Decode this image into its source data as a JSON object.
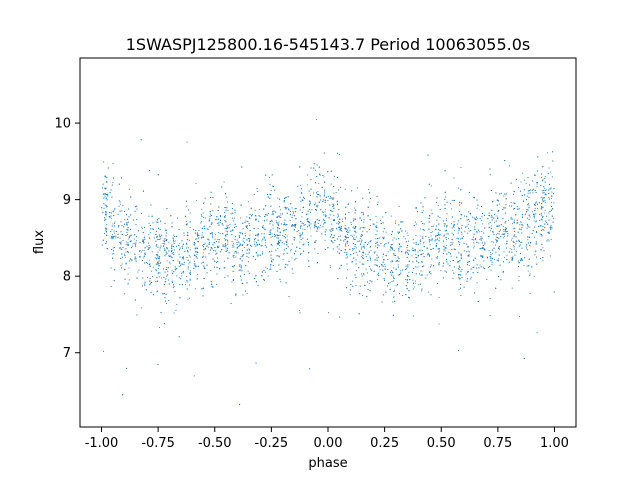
{
  "chart_data": {
    "type": "scatter",
    "title": "1SWASPJ125800.16-545143.7 Period 10063055.0s",
    "xlabel": "phase",
    "ylabel": "flux",
    "xlim": [
      -1.095,
      1.095
    ],
    "ylim": [
      6.03,
      10.85
    ],
    "x_ticks": [
      "-1.00",
      "-0.75",
      "-0.50",
      "-0.25",
      "0.00",
      "0.25",
      "0.50",
      "0.75",
      "1.00"
    ],
    "y_ticks": [
      "7",
      "8",
      "9",
      "10"
    ],
    "grid": false,
    "legend": "none",
    "marker_color": "#1f77b4",
    "series_profile": {
      "description_units": "phase vs median flux",
      "phase": [
        -1.0,
        -0.95,
        -0.9,
        -0.85,
        -0.8,
        -0.75,
        -0.7,
        -0.65,
        -0.6,
        -0.55,
        -0.5,
        -0.45,
        -0.4,
        -0.35,
        -0.3,
        -0.25,
        -0.2,
        -0.15,
        -0.1,
        -0.05,
        0.0,
        0.05,
        0.1,
        0.15,
        0.2,
        0.25,
        0.3,
        0.35,
        0.4,
        0.45,
        0.5,
        0.55,
        0.6,
        0.65,
        0.7,
        0.75,
        0.8,
        0.85,
        0.9,
        0.95,
        1.0
      ],
      "median_flux": [
        8.9,
        8.6,
        8.45,
        8.4,
        8.35,
        8.3,
        8.15,
        8.2,
        8.35,
        8.45,
        8.5,
        8.55,
        8.4,
        8.45,
        8.5,
        8.6,
        8.55,
        8.6,
        8.75,
        8.9,
        8.9,
        8.6,
        8.45,
        8.4,
        8.35,
        8.3,
        8.15,
        8.2,
        8.35,
        8.45,
        8.5,
        8.55,
        8.4,
        8.45,
        8.5,
        8.6,
        8.55,
        8.6,
        8.75,
        8.85,
        8.95
      ],
      "spread": 0.3
    }
  }
}
